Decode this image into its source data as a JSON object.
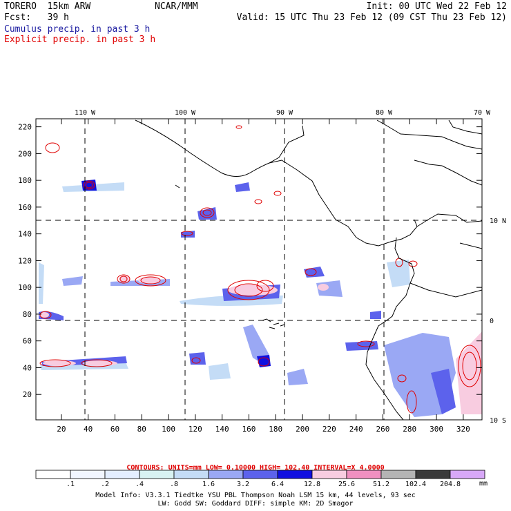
{
  "header": {
    "model": "TORERO  15km ARW",
    "org": "NCAR/MMM",
    "init": "Init: 00 UTC Wed 22 Feb 12",
    "fcst": "Fcst:   39 h",
    "valid": "Valid: 15 UTC Thu 23 Feb 12 (09 CST Thu 23 Feb 12)",
    "field1": "Cumulus precip. in past 3 h",
    "field2": "Explicit precip. in past 3 h"
  },
  "axes": {
    "lon_labels": [
      "110 W",
      "100 W",
      "90 W",
      "80 W",
      "70 W"
    ],
    "lat_labels": [
      "10 N",
      "0",
      "10 S"
    ],
    "y_ticks": [
      "220",
      "200",
      "180",
      "160",
      "140",
      "120",
      "100",
      "80",
      "60",
      "40",
      "20"
    ],
    "x_ticks": [
      "20",
      "40",
      "60",
      "80",
      "100",
      "120",
      "140",
      "160",
      "180",
      "200",
      "220",
      "240",
      "260",
      "280",
      "300",
      "320"
    ]
  },
  "contours_line": "CONTOURS:  UNITS=mm  LOW= 0.10000      HIGH=  102.40      INTERVAL=X  4.0000",
  "color_scale": {
    "unit": "mm",
    "labels": [
      ".1",
      ".2",
      ".4",
      ".8",
      "1.6",
      "3.2",
      "6.4",
      "12.8",
      "25.6",
      "51.2",
      "102.4",
      "204.8"
    ],
    "colors": [
      "#ffffff",
      "#f2f6ff",
      "#e4eeff",
      "#d8f2f2",
      "#c4dcf6",
      "#9aa8f4",
      "#5c62ec",
      "#1010e0",
      "#f8cce0",
      "#f090c0",
      "#b4b4b4",
      "#3a3a3a",
      "#d8a8f8"
    ]
  },
  "footer": {
    "line1": "Model Info: V3.3.1    Tiedtke YSU PBL  Thompson     Noah LSM  15 km,    44 levels,    93 sec",
    "line2": "LW: Godd SW: Goddard DIFF: simple KM: 2D Smagor"
  }
}
